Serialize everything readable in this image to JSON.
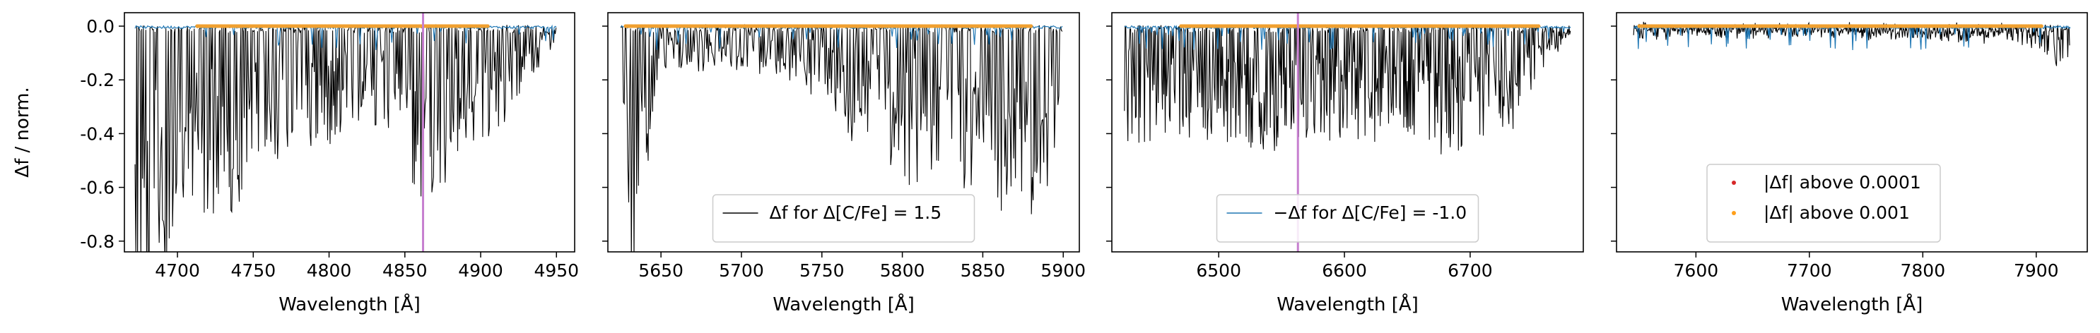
{
  "chart_data": [
    {
      "type": "line",
      "xlabel": "Wavelength [Å]",
      "ylabel": "Δf / norm.",
      "xlim": [
        4665,
        4962
      ],
      "ylim": [
        -0.84,
        0.05
      ],
      "xticks": [
        "4700",
        "4750",
        "4800",
        "4850",
        "4900",
        "4950"
      ],
      "yticks": [
        "0.0",
        "-0.2",
        "-0.4",
        "-0.6",
        "-0.8"
      ],
      "vline": 4862,
      "series": [
        {
          "style": "black",
          "x_range": [
            4672,
            4950
          ],
          "envelope": [
            [
              4672,
              -0.82
            ],
            [
              4690,
              -0.72
            ],
            [
              4710,
              -0.45
            ],
            [
              4730,
              -0.55
            ],
            [
              4760,
              -0.35
            ],
            [
              4790,
              -0.35
            ],
            [
              4820,
              -0.25
            ],
            [
              4840,
              -0.3
            ],
            [
              4862,
              -0.5
            ],
            [
              4890,
              -0.35
            ],
            [
              4920,
              -0.25
            ],
            [
              4950,
              -0.05
            ]
          ]
        },
        {
          "style": "blue",
          "x_range": [
            4672,
            4950
          ]
        },
        {
          "style": "orange",
          "x_range": [
            4713,
            4905
          ]
        }
      ]
    },
    {
      "type": "line",
      "xlabel": "Wavelength [Å]",
      "xlim": [
        5617,
        5910
      ],
      "ylim": [
        -0.84,
        0.05
      ],
      "xticks": [
        "5650",
        "5700",
        "5750",
        "5800",
        "5850",
        "5900"
      ],
      "series": [
        {
          "style": "black",
          "name": "Δf for Δ[C/Fe] = 1.5",
          "x_range": [
            5625,
            5900
          ],
          "envelope": [
            [
              5625,
              -0.02
            ],
            [
              5630,
              -0.6
            ],
            [
              5636,
              -0.8
            ],
            [
              5640,
              -0.4
            ],
            [
              5650,
              -0.12
            ],
            [
              5680,
              -0.1
            ],
            [
              5710,
              -0.12
            ],
            [
              5740,
              -0.15
            ],
            [
              5770,
              -0.3
            ],
            [
              5800,
              -0.45
            ],
            [
              5830,
              -0.4
            ],
            [
              5860,
              -0.5
            ],
            [
              5890,
              -0.55
            ],
            [
              5900,
              -0.05
            ]
          ]
        },
        {
          "style": "blue",
          "x_range": [
            5625,
            5900
          ]
        },
        {
          "style": "orange",
          "x_range": [
            5628,
            5880
          ]
        }
      ],
      "legend": {
        "placement": "lower-center"
      }
    },
    {
      "type": "line",
      "xlabel": "Wavelength [Å]",
      "xlim": [
        6415,
        6790
      ],
      "ylim": [
        -0.84,
        0.05
      ],
      "xticks": [
        "6500",
        "6600",
        "6700"
      ],
      "vline": 6563,
      "series": [
        {
          "style": "black",
          "x_range": [
            6425,
            6780
          ],
          "envelope": [
            [
              6425,
              -0.3
            ],
            [
              6460,
              -0.32
            ],
            [
              6500,
              -0.3
            ],
            [
              6540,
              -0.35
            ],
            [
              6580,
              -0.3
            ],
            [
              6620,
              -0.3
            ],
            [
              6660,
              -0.33
            ],
            [
              6700,
              -0.32
            ],
            [
              6740,
              -0.25
            ],
            [
              6760,
              -0.1
            ],
            [
              6780,
              -0.02
            ]
          ]
        },
        {
          "style": "blue",
          "name": "−Δf for Δ[C/Fe] = -1.0",
          "x_range": [
            6425,
            6780
          ]
        },
        {
          "style": "orange",
          "x_range": [
            6470,
            6755
          ]
        }
      ],
      "legend": {
        "placement": "lower-center"
      }
    },
    {
      "type": "line",
      "xlabel": "Wavelength [Å]",
      "xlim": [
        7530,
        7945
      ],
      "ylim": [
        -0.84,
        0.05
      ],
      "xticks": [
        "7600",
        "7700",
        "7800",
        "7900"
      ],
      "series": [
        {
          "style": "black",
          "x_range": [
            7545,
            7930
          ],
          "envelope": [
            [
              7545,
              -0.02
            ],
            [
              7700,
              -0.02
            ],
            [
              7850,
              -0.03
            ],
            [
              7900,
              -0.05
            ],
            [
              7915,
              -0.1
            ],
            [
              7930,
              -0.08
            ]
          ]
        },
        {
          "style": "blue",
          "x_range": [
            7545,
            7930
          ]
        },
        {
          "style": "orange",
          "x_range": [
            7550,
            7905
          ]
        }
      ],
      "legend": {
        "placement": "lower-center",
        "entries": [
          {
            "label": "|Δf| above 0.0001",
            "color": "#d62728"
          },
          {
            "label": "|Δf| above 0.001",
            "color": "#ff9f1a"
          }
        ]
      }
    }
  ]
}
